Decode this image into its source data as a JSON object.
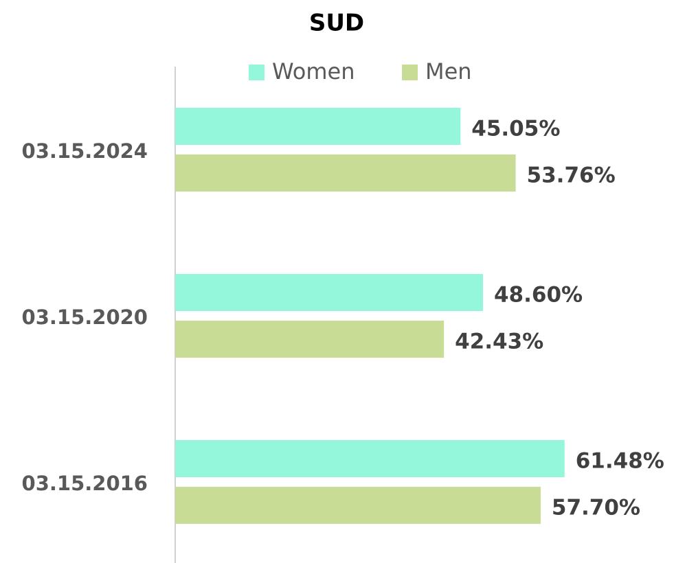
{
  "chart_data": {
    "type": "hbar",
    "title": "SUD",
    "categories": [
      "03.15.2024",
      "03.15.2020",
      "03.15.2016"
    ],
    "series": [
      {
        "name": "Women",
        "color": "#94f7db",
        "values": [
          45.05,
          48.6,
          61.48
        ],
        "value_labels": [
          "45.05%",
          "48.60%",
          "61.48%"
        ]
      },
      {
        "name": "Men",
        "color": "#c9dc96",
        "values": [
          53.76,
          42.43,
          57.7
        ],
        "value_labels": [
          "53.76%",
          "42.43%",
          "57.70%"
        ]
      }
    ],
    "xlim": [
      0,
      78
    ],
    "legend": "top"
  }
}
